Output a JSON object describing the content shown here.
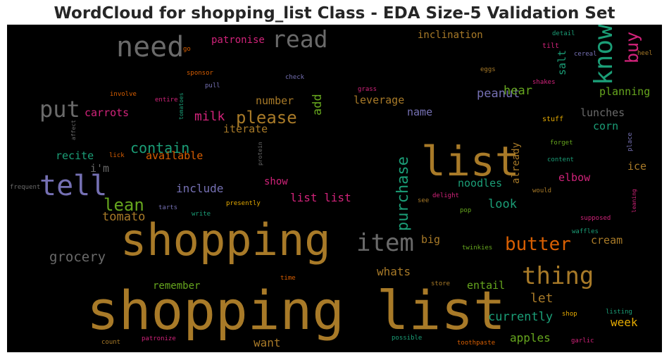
{
  "chart_data": {
    "type": "wordcloud",
    "title": "WordCloud for shopping_list Class - EDA Size-5 Validation Set",
    "background": "#000000",
    "palette_names": [
      "gold",
      "gray",
      "purple",
      "green",
      "orange",
      "magenta",
      "lime",
      "teal"
    ],
    "words": [
      {
        "text": "shopping list",
        "color": "#a87a28"
      },
      {
        "text": "shopping",
        "color": "#a87a28"
      },
      {
        "text": "list",
        "color": "#a87a28"
      },
      {
        "text": "need",
        "color": "#6a6a6a"
      },
      {
        "text": "read",
        "color": "#6a6a6a"
      },
      {
        "text": "know",
        "color": "#1b9e77"
      },
      {
        "text": "buy",
        "color": "#d1237a"
      },
      {
        "text": "tell",
        "color": "#7570b3"
      },
      {
        "text": "put",
        "color": "#6a6a6a"
      },
      {
        "text": "item",
        "color": "#6a6a6a"
      },
      {
        "text": "thing",
        "color": "#a87a28"
      },
      {
        "text": "butter",
        "color": "#d95f02"
      },
      {
        "text": "please",
        "color": "#a87a28"
      },
      {
        "text": "purchase",
        "color": "#1b9e77"
      },
      {
        "text": "lean",
        "color": "#66a61e"
      },
      {
        "text": "contain",
        "color": "#1b9e77"
      },
      {
        "text": "grocery",
        "color": "#6a6a6a"
      },
      {
        "text": "tomato",
        "color": "#a87a28"
      },
      {
        "text": "patronise",
        "color": "#d1237a"
      },
      {
        "text": "inclination",
        "color": "#a87a28"
      },
      {
        "text": "peanut",
        "color": "#7570b3"
      },
      {
        "text": "hear",
        "color": "#66a61e"
      },
      {
        "text": "planning",
        "color": "#66a61e"
      },
      {
        "text": "salt",
        "color": "#1b9e77"
      },
      {
        "text": "add",
        "color": "#66a61e"
      },
      {
        "text": "leverage",
        "color": "#a87a28"
      },
      {
        "text": "carrots",
        "color": "#d1237a"
      },
      {
        "text": "milk",
        "color": "#d1237a"
      },
      {
        "text": "number",
        "color": "#a87a28"
      },
      {
        "text": "iterate",
        "color": "#a87a28"
      },
      {
        "text": "name",
        "color": "#7570b3"
      },
      {
        "text": "lunches",
        "color": "#6a6a6a"
      },
      {
        "text": "corn",
        "color": "#1b9e77"
      },
      {
        "text": "recite",
        "color": "#1b9e77"
      },
      {
        "text": "available",
        "color": "#d95f02"
      },
      {
        "text": "i'm",
        "color": "#6a6a6a"
      },
      {
        "text": "include",
        "color": "#7570b3"
      },
      {
        "text": "show",
        "color": "#d1237a"
      },
      {
        "text": "list list",
        "color": "#d1237a"
      },
      {
        "text": "noodles",
        "color": "#1b9e77"
      },
      {
        "text": "already",
        "color": "#a87a28"
      },
      {
        "text": "elbow",
        "color": "#d1237a"
      },
      {
        "text": "ice",
        "color": "#a87a28"
      },
      {
        "text": "look",
        "color": "#1b9e77"
      },
      {
        "text": "big",
        "color": "#a87a28"
      },
      {
        "text": "cream",
        "color": "#a87a28"
      },
      {
        "text": "whats",
        "color": "#a87a28"
      },
      {
        "text": "remember",
        "color": "#66a61e"
      },
      {
        "text": "entail",
        "color": "#66a61e"
      },
      {
        "text": "let",
        "color": "#a87a28"
      },
      {
        "text": "currently",
        "color": "#1b9e77"
      },
      {
        "text": "week",
        "color": "#e6ab02"
      },
      {
        "text": "want",
        "color": "#a87a28"
      },
      {
        "text": "apples",
        "color": "#66a61e"
      },
      {
        "text": "stuff",
        "color": "#e6ab02"
      },
      {
        "text": "go",
        "color": "#d95f02"
      },
      {
        "text": "detail",
        "color": "#1b9e77"
      },
      {
        "text": "tilt",
        "color": "#d1237a"
      },
      {
        "text": "cereal",
        "color": "#7570b3"
      },
      {
        "text": "heel",
        "color": "#a87a28"
      },
      {
        "text": "eggs",
        "color": "#a87a28"
      },
      {
        "text": "shakes",
        "color": "#d1237a"
      },
      {
        "text": "sponsor",
        "color": "#d95f02"
      },
      {
        "text": "check",
        "color": "#7570b3"
      },
      {
        "text": "pull",
        "color": "#7570b3"
      },
      {
        "text": "grass",
        "color": "#d1237a"
      },
      {
        "text": "involve",
        "color": "#d95f02"
      },
      {
        "text": "entire",
        "color": "#d1237a"
      },
      {
        "text": "tomatoes",
        "color": "#1b9e77"
      },
      {
        "text": "affect",
        "color": "#6a6a6a"
      },
      {
        "text": "lick",
        "color": "#d95f02"
      },
      {
        "text": "protein",
        "color": "#6a6a6a"
      },
      {
        "text": "forget",
        "color": "#66a61e"
      },
      {
        "text": "content",
        "color": "#1b9e77"
      },
      {
        "text": "place",
        "color": "#7570b3"
      },
      {
        "text": "frequent",
        "color": "#6a6a6a"
      },
      {
        "text": "tarts",
        "color": "#7570b3"
      },
      {
        "text": "write",
        "color": "#1b9e77"
      },
      {
        "text": "presently",
        "color": "#e6ab02"
      },
      {
        "text": "see",
        "color": "#a87a28"
      },
      {
        "text": "delight",
        "color": "#d1237a"
      },
      {
        "text": "pop",
        "color": "#66a61e"
      },
      {
        "text": "would",
        "color": "#a87a28"
      },
      {
        "text": "leaning",
        "color": "#d1237a"
      },
      {
        "text": "supposed",
        "color": "#d1237a"
      },
      {
        "text": "waffles",
        "color": "#1b9e77"
      },
      {
        "text": "twinkies",
        "color": "#66a61e"
      },
      {
        "text": "time",
        "color": "#d95f02"
      },
      {
        "text": "store",
        "color": "#a87a28"
      },
      {
        "text": "shop",
        "color": "#e6ab02"
      },
      {
        "text": "listing",
        "color": "#1b9e77"
      },
      {
        "text": "count",
        "color": "#a87a28"
      },
      {
        "text": "patronize",
        "color": "#d1237a"
      },
      {
        "text": "possible",
        "color": "#1b9e77"
      },
      {
        "text": "toothpaste",
        "color": "#d95f02"
      },
      {
        "text": "garlic",
        "color": "#d1237a"
      }
    ]
  }
}
